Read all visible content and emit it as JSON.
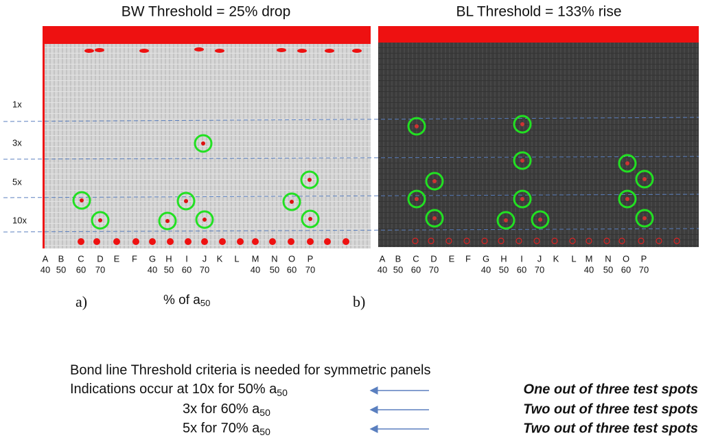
{
  "panels": [
    {
      "title": "BW Threshold = 25% drop",
      "label": "a)"
    },
    {
      "title": "BL Threshold = 133% rise",
      "label": "b)"
    }
  ],
  "row_labels": [
    "1x",
    "3x",
    "5x",
    "10x"
  ],
  "columns": [
    {
      "letter": "A",
      "value": 40
    },
    {
      "letter": "B",
      "value": 50
    },
    {
      "letter": "C",
      "value": 60
    },
    {
      "letter": "D",
      "value": 70
    },
    {
      "letter": "E"
    },
    {
      "letter": "F"
    },
    {
      "letter": "G",
      "value": 40
    },
    {
      "letter": "H",
      "value": 50
    },
    {
      "letter": "I",
      "value": 60
    },
    {
      "letter": "J",
      "value": 70
    },
    {
      "letter": "K"
    },
    {
      "letter": "L"
    },
    {
      "letter": "M",
      "value": 40
    },
    {
      "letter": "N",
      "value": 50
    },
    {
      "letter": "O",
      "value": 60
    },
    {
      "letter": "P",
      "value": 70
    }
  ],
  "axis_label": {
    "text": "% of a",
    "sub": "50"
  },
  "notes": {
    "heading": "Bond line Threshold criteria is needed for symmetric panels",
    "lines": [
      {
        "text": "Indications occur at 10x for 50% a",
        "sub": "50",
        "result": "One out of three test spots"
      },
      {
        "text": "3x for 60% a",
        "sub": "50",
        "result": "Two out of three test spots"
      },
      {
        "text": "5x for 70% a",
        "sub": "50",
        "result": "Two out of three test spots"
      }
    ]
  }
}
